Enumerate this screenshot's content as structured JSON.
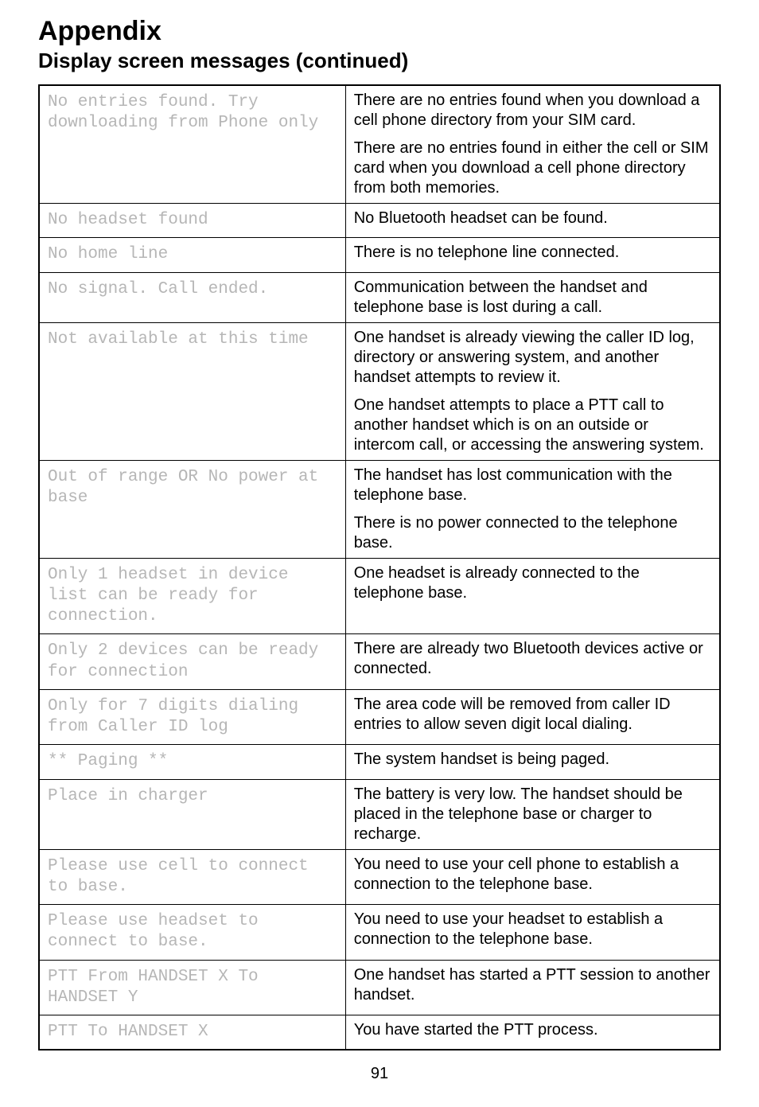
{
  "heading": "Appendix",
  "subheading": "Display screen messages (continued)",
  "page_number": "91",
  "table": {
    "border_color": "#000000",
    "msg_color": "#b6b6b6",
    "rows": [
      {
        "msg": "No entries found. Try downloading from Phone only",
        "desc": [
          "There are no entries found when you download a cell phone directory from your SIM card.",
          "There are no entries found in either the cell or SIM card when you download a cell phone directory from both memories."
        ]
      },
      {
        "msg": "No headset found",
        "desc": [
          "No Bluetooth headset can be found."
        ]
      },
      {
        "msg": "No home line",
        "desc": [
          "There is no telephone line connected."
        ]
      },
      {
        "msg": "No signal. Call ended.",
        "desc": [
          "Communication between the handset and telephone base is lost during a call."
        ]
      },
      {
        "msg": "Not available at this time",
        "desc": [
          "One handset is already viewing the caller ID log, directory or answering system, and another handset attempts to review it.",
          "One handset attempts to place a PTT call to another handset which is on an outside or intercom call, or accessing the answering system."
        ]
      },
      {
        "msg": "Out of range OR No power at base",
        "desc": [
          "The handset has lost communication with the telephone base.",
          "There is no power connected to the telephone base."
        ]
      },
      {
        "msg": "Only 1 headset in device list can be ready for connection.",
        "desc": [
          "One headset is already connected to the telephone base."
        ]
      },
      {
        "msg": "Only 2 devices can be ready for connection",
        "desc": [
          "There are already two Bluetooth devices active or connected."
        ]
      },
      {
        "msg": "Only for 7 digits dialing from Caller ID log",
        "desc": [
          "The area code will be removed from caller ID entries to allow seven digit local dialing."
        ]
      },
      {
        "msg": "** Paging **",
        "desc": [
          "The system handset is being paged."
        ]
      },
      {
        "msg": "Place in charger",
        "desc": [
          "The battery is very low. The handset should be placed in the telephone base or charger to recharge."
        ]
      },
      {
        "msg": "Please use cell to connect to base.",
        "desc": [
          "You need to use your cell phone to establish a connection to the telephone base."
        ]
      },
      {
        "msg": "Please use headset to connect to base.",
        "desc": [
          "You need to use your headset to establish a connection to the telephone base."
        ]
      },
      {
        "msg": "PTT From HANDSET X To HANDSET Y",
        "desc": [
          "One handset has started a PTT session to another handset."
        ]
      },
      {
        "msg": "PTT To HANDSET X",
        "desc": [
          "You have started the PTT process."
        ]
      }
    ]
  }
}
